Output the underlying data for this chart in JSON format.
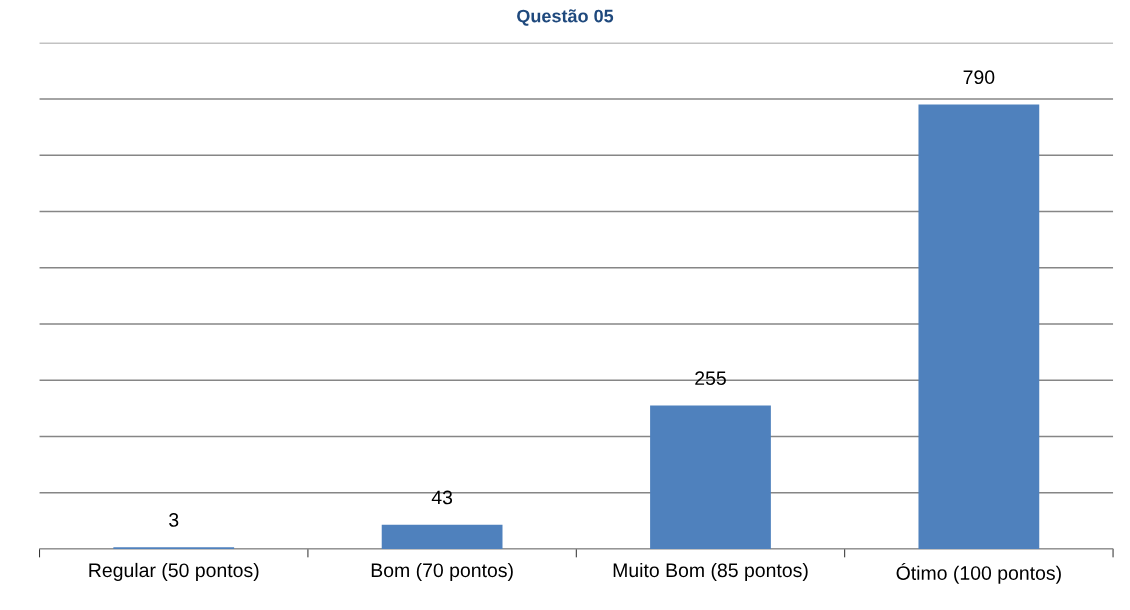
{
  "chart_data": {
    "type": "bar",
    "title": "Questão 05",
    "categories": [
      "Regular (50 pontos)",
      "Bom (70 pontos)",
      "Muito Bom (85 pontos)",
      "Ótimo (100 pontos)"
    ],
    "values": [
      3,
      43,
      255,
      790
    ],
    "color": "#4f81bd",
    "ylim": [
      0,
      900
    ],
    "yticks": [
      {
        "value": 0,
        "label": null
      },
      {
        "value": 100,
        "label": null
      },
      {
        "value": 200,
        "label": null
      },
      {
        "value": 300,
        "label": null
      },
      {
        "value": 400,
        "label": null
      },
      {
        "value": 500,
        "label": null
      },
      {
        "value": 600,
        "label": null
      },
      {
        "value": 700,
        "label": null
      },
      {
        "value": 800,
        "label": null
      },
      {
        "value": 900,
        "label": null
      }
    ],
    "grid": "y",
    "data_labels": true,
    "tick_labels": "x",
    "legend": false
  }
}
